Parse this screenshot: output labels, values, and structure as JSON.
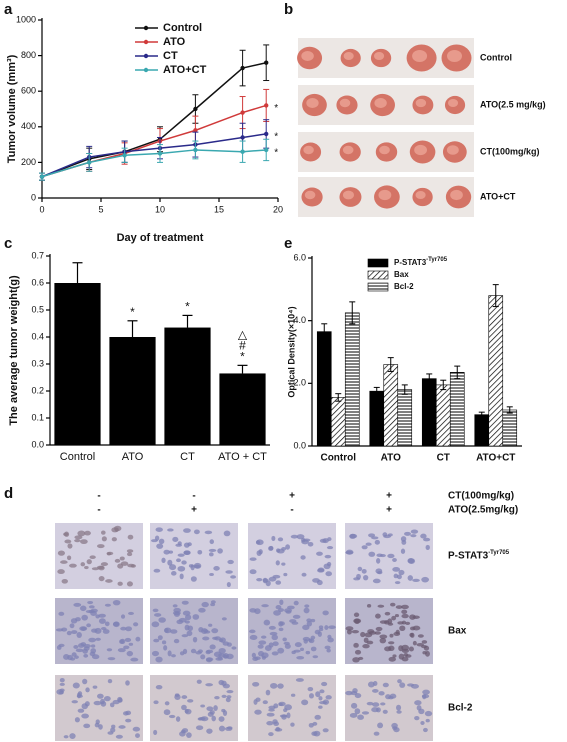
{
  "panel_labels": [
    "a",
    "b",
    "c",
    "d",
    "e"
  ],
  "chart_data": [
    {
      "type": "line",
      "xlabel": "Day of treatment",
      "ylabel": "Tumor volume (mm³)",
      "x": [
        0,
        4,
        7,
        10,
        13,
        17,
        19
      ],
      "xlim": [
        0,
        20
      ],
      "xticks": [
        0,
        5,
        10,
        15,
        20
      ],
      "ylim": [
        0,
        1000
      ],
      "yticks": [
        0,
        200,
        400,
        600,
        800,
        1000
      ],
      "series": [
        {
          "name": "Control",
          "color": "#111111",
          "values": [
            120,
            220,
            260,
            330,
            500,
            730,
            760
          ],
          "errors": [
            20,
            60,
            60,
            70,
            80,
            100,
            100
          ]
        },
        {
          "name": "ATO",
          "color": "#d03a3a",
          "values": [
            120,
            200,
            250,
            320,
            380,
            480,
            520
          ],
          "errors": [
            20,
            50,
            60,
            70,
            80,
            90,
            90
          ],
          "end_label": "*"
        },
        {
          "name": "CT",
          "color": "#2a2a8a",
          "values": [
            120,
            230,
            260,
            280,
            300,
            340,
            360
          ],
          "errors": [
            20,
            60,
            60,
            60,
            70,
            80,
            80
          ],
          "end_label": "*"
        },
        {
          "name": "ATO+CT",
          "color": "#3aa8b0",
          "values": [
            120,
            200,
            240,
            250,
            270,
            260,
            270
          ],
          "errors": [
            20,
            50,
            40,
            50,
            50,
            60,
            60
          ],
          "end_label": "*"
        }
      ]
    },
    {
      "type": "bar",
      "ylabel": "The average tumor weight(g)",
      "categories": [
        "Control",
        "ATO",
        "CT",
        "ATO + CT"
      ],
      "values": [
        0.6,
        0.4,
        0.435,
        0.265
      ],
      "errors": [
        0.075,
        0.06,
        0.045,
        0.03
      ],
      "annotations": [
        [],
        [
          "*"
        ],
        [
          "*"
        ],
        [
          "△",
          "#",
          "*"
        ]
      ],
      "color": "#000000",
      "ylim": [
        0,
        0.7
      ],
      "yticks": [
        {
          "value": 0,
          "label": "0.0"
        },
        0.1,
        0.2,
        0.3,
        0.4,
        0.5,
        0.6,
        0.7
      ]
    },
    {
      "type": "grouped_bar",
      "ylabel": "Optical Density(×10⁴)",
      "categories": [
        "Control",
        "ATO",
        "CT",
        "ATO+CT"
      ],
      "ylim": [
        0,
        6
      ],
      "yticks": [
        {
          "value": 0,
          "label": "0.0"
        },
        {
          "value": 2,
          "label": "2.0"
        },
        {
          "value": 4,
          "label": "4.0"
        },
        {
          "value": 6,
          "label": "6.0"
        }
      ],
      "series": [
        {
          "name": "P-STAT3",
          "name_sup": "-Tyr705",
          "color": "#000000",
          "pattern": "solid",
          "values": [
            3.65,
            1.75,
            2.15,
            1.0
          ],
          "errors": [
            0.25,
            0.12,
            0.15,
            0.08
          ]
        },
        {
          "name": "Bax",
          "color": "#000000",
          "pattern": "diagonal",
          "values": [
            1.55,
            2.6,
            1.95,
            4.8
          ],
          "errors": [
            0.12,
            0.22,
            0.15,
            0.35
          ]
        },
        {
          "name": "Bcl-2",
          "color": "#000000",
          "pattern": "horizontal",
          "values": [
            4.25,
            1.8,
            2.35,
            1.15
          ],
          "errors": [
            0.35,
            0.15,
            0.2,
            0.1
          ]
        }
      ]
    }
  ],
  "photos": {
    "rows": [
      "Control",
      "ATO(2.5 mg/kg)",
      "CT(100mg/kg)",
      "ATO+CT"
    ]
  },
  "ihc": {
    "treatments": [
      {
        "label": "CT(100mg/kg)",
        "signs": [
          "-",
          "-",
          "+",
          "+"
        ]
      },
      {
        "label": "ATO(2.5mg/kg)",
        "signs": [
          "-",
          "+",
          "-",
          "+"
        ]
      }
    ],
    "rows": [
      {
        "name": "P-STAT3",
        "name_sup": "-Tyr705"
      },
      {
        "name": "Bax"
      },
      {
        "name": "Bcl-2"
      }
    ]
  }
}
